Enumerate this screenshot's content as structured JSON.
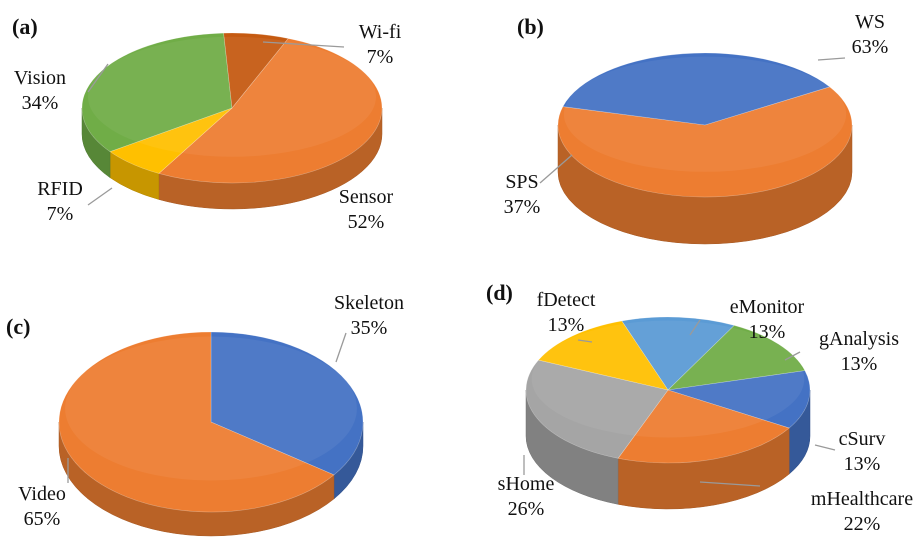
{
  "colors": {
    "orange": "#ED7D31",
    "blue": "#4472C4",
    "green": "#70AD47",
    "yellow": "#FFC000",
    "gray": "#A5A5A5",
    "lightblue": "#5B9BD5",
    "brown": "#C55A11",
    "leader": "#9a9a9a"
  },
  "chart_data": [
    {
      "type": "pie",
      "panel_label": "(a)",
      "labels": [
        "Sensor",
        "RFID",
        "Vision",
        "Wi-fi"
      ],
      "values": [
        52,
        7,
        34,
        7
      ],
      "value_labels": [
        "52%",
        "7%",
        "34%",
        "7%"
      ],
      "colors": [
        "#ED7D31",
        "#FFC000",
        "#70AD47",
        "#C55A11"
      ],
      "style": "3d"
    },
    {
      "type": "pie",
      "panel_label": "(b)",
      "labels": [
        "WS",
        "SPS"
      ],
      "values": [
        63,
        37
      ],
      "value_labels": [
        "63%",
        "37%"
      ],
      "colors": [
        "#ED7D31",
        "#4472C4"
      ],
      "style": "3d"
    },
    {
      "type": "pie",
      "panel_label": "(c)",
      "labels": [
        "Skeleton",
        "Video"
      ],
      "values": [
        35,
        65
      ],
      "value_labels": [
        "35%",
        "65%"
      ],
      "colors": [
        "#4472C4",
        "#ED7D31"
      ],
      "style": "3d"
    },
    {
      "type": "pie",
      "panel_label": "(d)",
      "labels": [
        "eMonitor",
        "gAnalysis",
        "cSurv",
        "mHealthcare",
        "sHome",
        "fDetect"
      ],
      "values": [
        13,
        13,
        13,
        22,
        26,
        13
      ],
      "value_labels": [
        "13%",
        "13%",
        "13%",
        "22%",
        "26%",
        "13%"
      ],
      "colors": [
        "#5B9BD5",
        "#70AD47",
        "#4472C4",
        "#ED7D31",
        "#A5A5A5",
        "#FFC000"
      ],
      "style": "3d"
    }
  ]
}
